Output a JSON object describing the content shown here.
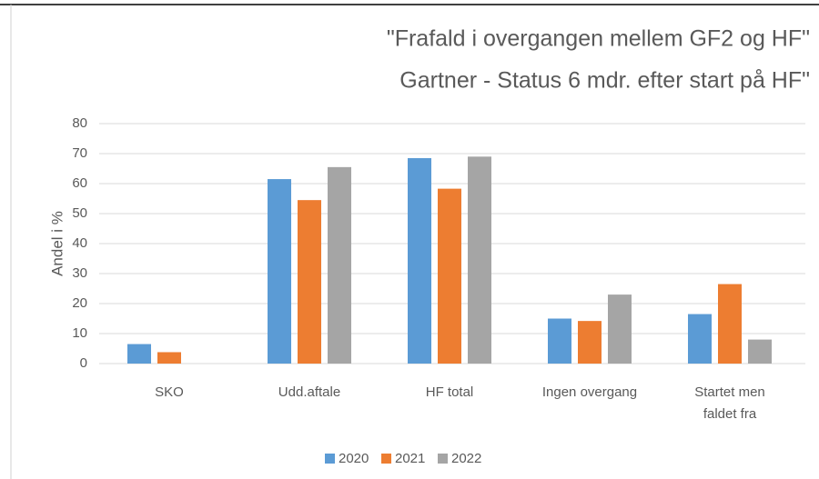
{
  "chart_data": {
    "type": "bar",
    "title": [
      "\"Frafald i overgangen mellem GF2 og HF\"",
      "Gartner - Status 6 mdr. efter start på HF\""
    ],
    "ylabel": "Andel i %",
    "categories": [
      "SKO",
      "Udd.aftale",
      "HF total",
      "Ingen overgang",
      "Startet men faldet fra"
    ],
    "series": [
      {
        "name": "2020",
        "color": "#5b9bd5",
        "values": [
          6.5,
          61.5,
          68.5,
          15,
          16.5
        ]
      },
      {
        "name": "2021",
        "color": "#ed7d31",
        "values": [
          3.8,
          54.5,
          58.3,
          14.2,
          26.5
        ]
      },
      {
        "name": "2022",
        "color": "#a5a5a5",
        "values": [
          null,
          65.5,
          69,
          23,
          8
        ]
      }
    ],
    "ylim": [
      0,
      80
    ],
    "yticks": [
      0,
      10,
      20,
      30,
      40,
      50,
      60,
      70,
      80
    ],
    "grid": true,
    "legend": "bottom"
  }
}
